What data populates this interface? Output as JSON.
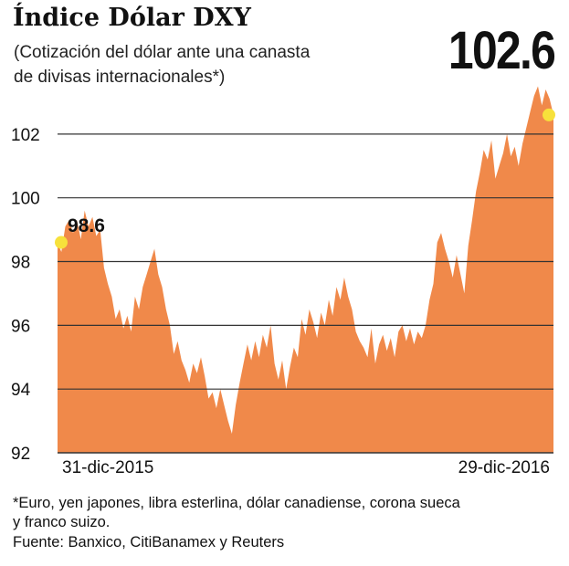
{
  "header": {
    "title": "Índice Dólar DXY",
    "subtitle_line1": "(Cotización del dólar ante una canasta",
    "subtitle_line2": "de divisas internacionales*)",
    "headline_value": "102.6"
  },
  "footer": {
    "note_line1": "*Euro, yen japones, libra esterlina, dólar canadiense, corona sueca",
    "note_line2": "y franco suizo.",
    "source": "Fuente: Banxico, CitiBanamex y Reuters"
  },
  "colors": {
    "area": "#F0894A",
    "gridline": "#333333",
    "marker": "#F7E13B",
    "text": "#111111"
  },
  "chart_data": {
    "type": "area",
    "title": "Índice Dólar DXY",
    "xlabel": "",
    "ylabel": "",
    "ylim": [
      92,
      103.8
    ],
    "yticks": [
      92,
      94,
      96,
      98,
      100,
      102
    ],
    "grid": true,
    "x_labels": [
      "31-dic-2015",
      "29-dic-2016"
    ],
    "start_label": "98.6",
    "end_label": "102.6",
    "series": [
      {
        "values": [
          98.6,
          98.3,
          99.1,
          99.3,
          98.9,
          99.3,
          98.7,
          99.6,
          99.1,
          99.4,
          98.8,
          99.0,
          97.8,
          97.3,
          96.9,
          96.2,
          96.5,
          95.9,
          96.3,
          95.8,
          96.9,
          96.5,
          97.2,
          97.6,
          98.0,
          98.4,
          97.6,
          97.2,
          96.5,
          96.0,
          95.1,
          95.5,
          94.9,
          94.6,
          94.2,
          94.8,
          94.5,
          95.0,
          94.4,
          93.7,
          93.9,
          93.4,
          94.0,
          93.5,
          93.0,
          92.6,
          93.5,
          94.2,
          94.8,
          95.4,
          94.9,
          95.5,
          95.0,
          95.7,
          95.3,
          96.0,
          94.8,
          94.3,
          94.9,
          94.0,
          94.7,
          95.3,
          95.0,
          96.2,
          95.7,
          96.5,
          96.1,
          95.6,
          96.4,
          96.0,
          96.8,
          96.3,
          97.2,
          96.8,
          97.5,
          96.9,
          96.5,
          95.8,
          95.5,
          95.3,
          95.0,
          95.9,
          94.8,
          95.4,
          95.7,
          95.2,
          95.6,
          95.0,
          95.8,
          96.0,
          95.5,
          95.9,
          95.4,
          95.8,
          95.6,
          96.0,
          96.8,
          97.3,
          98.6,
          98.9,
          98.4,
          98.0,
          97.5,
          98.2,
          97.6,
          97.0,
          98.5,
          99.3,
          100.2,
          100.8,
          101.5,
          101.2,
          101.8,
          100.6,
          101.0,
          101.4,
          102.0,
          101.3,
          101.6,
          101.0,
          101.7,
          102.2,
          102.7,
          103.2,
          103.5,
          102.9,
          103.4,
          103.1,
          102.6
        ]
      }
    ]
  }
}
